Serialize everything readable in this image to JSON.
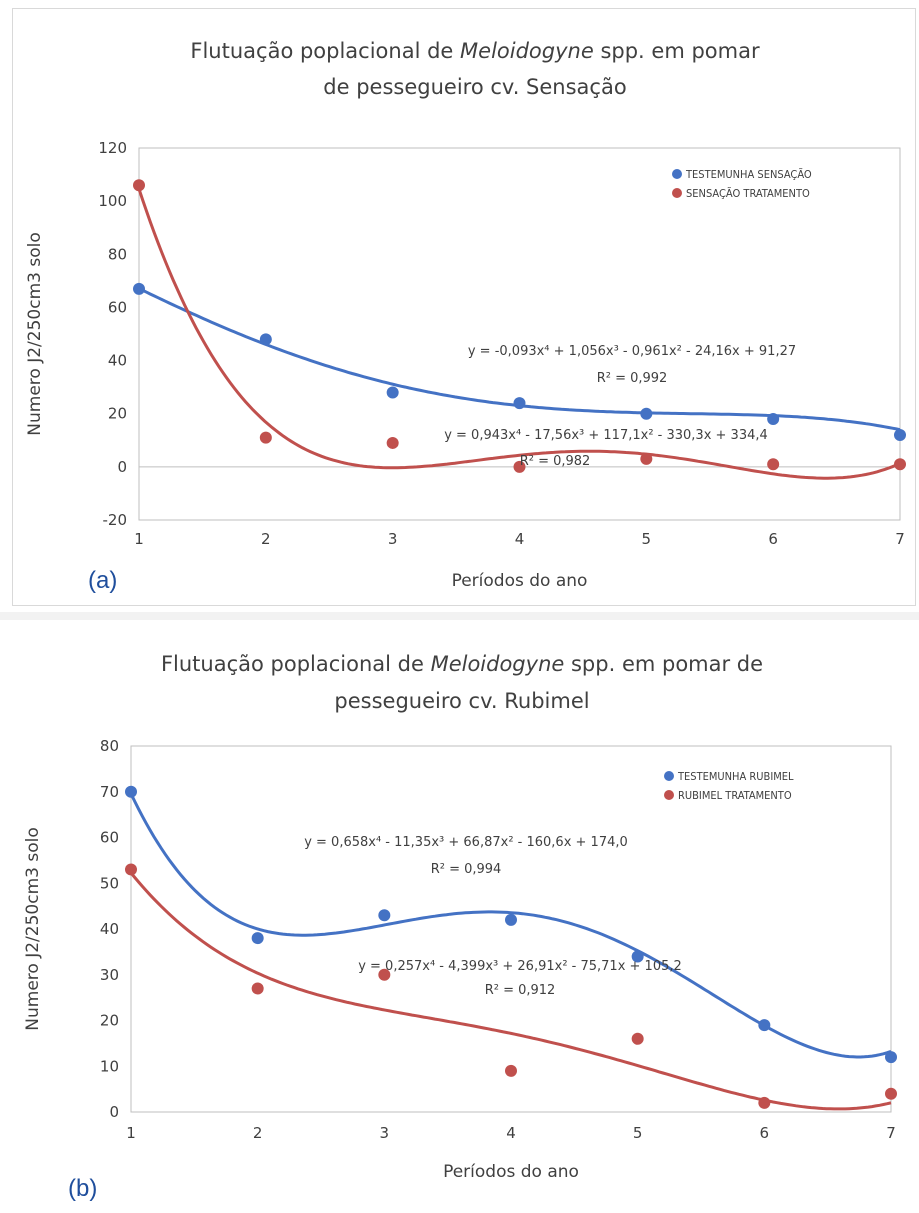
{
  "charts": [
    {
      "panel_label": "(a)",
      "title_line1_pre": "Flutuação poplacional  de ",
      "title_line1_em": "Meloidogyne",
      "title_line1_post": " spp.  em pomar",
      "title_line2": "de pessegueiro cv. Sensação",
      "equation_1": "y = -0,093x⁴ + 1,056x³ - 0,961x² - 24,16x + 91,27",
      "r2_1": "R² = 0,992",
      "equation_2": "y = 0,943x⁴ - 17,56x³ + 117,1x² - 330,3x + 334,4",
      "r2_2": "R² = 0,982"
    },
    {
      "panel_label": "(b)",
      "title_line1_pre": "Flutuação poplacional  de ",
      "title_line1_em": "Meloidogyne",
      "title_line1_post": " spp.  em pomar de",
      "title_line2": "pessegueiro cv. Rubimel",
      "equation_1": "y = 0,658x⁴ - 11,35x³ + 66,87x² - 160,6x + 174,0",
      "r2_1": "R² = 0,994",
      "equation_2": "y = 0,257x⁴ - 4,399x³ + 26,91x² - 75,71x + 105,2",
      "r2_2": "R² = 0,912"
    }
  ],
  "chart_data": [
    {
      "type": "scatter",
      "title": "Flutuação poplacional  de Meloidogyne spp.  em pomar de pessegueiro cv. Sensação",
      "xlabel": "Períodos do ano",
      "ylabel": "Numero J2/250cm3 solo",
      "x": [
        1,
        2,
        3,
        4,
        5,
        6,
        7
      ],
      "xlim": [
        1,
        7
      ],
      "ylim": [
        -20,
        120
      ],
      "yticks": [
        -20,
        0,
        20,
        40,
        60,
        80,
        100,
        120
      ],
      "legend_position": "top-right",
      "series": [
        {
          "name": "TESTEMUNHA SENSAÇÃO",
          "color": "#4472c4",
          "values": [
            67,
            48,
            28,
            24,
            20,
            18,
            12
          ],
          "trendline": {
            "type": "polynomial",
            "order": 4,
            "coefficients": [
              -0.093,
              1.056,
              -0.961,
              -24.16,
              91.27
            ]
          }
        },
        {
          "name": "SENSAÇÃO TRATAMENTO",
          "color": "#c0504d",
          "values": [
            106,
            11,
            9,
            0,
            3,
            1,
            1
          ],
          "trendline": {
            "type": "polynomial",
            "order": 4,
            "coefficients": [
              0.943,
              -17.56,
              117.1,
              -330.3,
              334.4
            ]
          }
        }
      ]
    },
    {
      "type": "scatter",
      "title": "Flutuação poplacional  de Meloidogyne spp.  em pomar de pessegueiro cv. Rubimel",
      "xlabel": "Períodos do ano",
      "ylabel": "Numero J2/250cm3 solo",
      "x": [
        1,
        2,
        3,
        4,
        5,
        6,
        7
      ],
      "xlim": [
        1,
        7
      ],
      "ylim": [
        0,
        80
      ],
      "yticks": [
        0,
        10,
        20,
        30,
        40,
        50,
        60,
        70,
        80
      ],
      "legend_position": "top-right",
      "series": [
        {
          "name": "TESTEMUNHA RUBIMEL",
          "color": "#4472c4",
          "values": [
            70,
            38,
            43,
            42,
            34,
            19,
            12
          ],
          "trendline": {
            "type": "polynomial",
            "order": 4,
            "coefficients": [
              0.658,
              -11.35,
              66.87,
              -160.6,
              174.0
            ]
          }
        },
        {
          "name": "RUBIMEL TRATAMENTO",
          "color": "#c0504d",
          "values": [
            53,
            27,
            30,
            9,
            16,
            2,
            4
          ],
          "trendline": {
            "type": "polynomial",
            "order": 4,
            "coefficients": [
              0.257,
              -4.399,
              26.91,
              -75.71,
              105.2
            ]
          }
        }
      ]
    }
  ]
}
